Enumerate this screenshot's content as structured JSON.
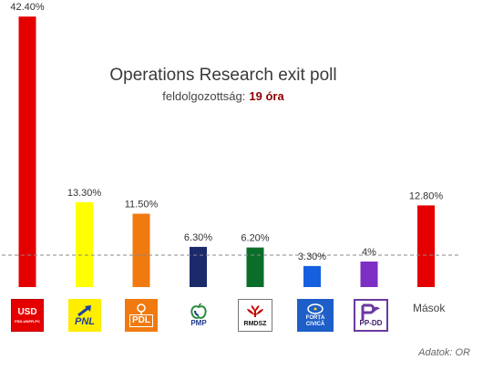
{
  "header": {
    "title": "Operations Research exit poll",
    "subtitle_label": "feldolgozottság:",
    "subtitle_value": "19 óra"
  },
  "chart_data": {
    "type": "bar",
    "categories": [
      "PSD-UNPR-PC",
      "PNL",
      "PDL",
      "PMP",
      "RMDSZ",
      "FORȚA CIVICĂ",
      "PP-DD",
      "Mások"
    ],
    "values": [
      42.4,
      13.3,
      11.5,
      6.3,
      6.2,
      3.3,
      4,
      12.8
    ],
    "value_labels": [
      "42.40%",
      "13.30%",
      "11.50%",
      "6.30%",
      "6.20%",
      "3.30%",
      "4%",
      "12.80%"
    ],
    "colors": [
      "#e50000",
      "#ffff00",
      "#f07a10",
      "#1b2a6b",
      "#0a6e2a",
      "#1660e0",
      "#7d2fc4",
      "#e50000"
    ],
    "threshold": 5,
    "ylim": [
      0,
      43
    ],
    "title": "Operations Research exit poll",
    "xlabel": "",
    "ylabel": ""
  },
  "logos": {
    "usd": "USD",
    "usd_small": "PSD-UNPR-PC",
    "pnl": "PNL",
    "pdl": "PDL",
    "pmp": "PMP",
    "rmdsz": "RMDSZ",
    "forta_1": "FORȚA",
    "forta_2": "CIVICĂ",
    "ppdd": "PP-DD"
  },
  "others_label": "Mások",
  "source": "Adatok: OR"
}
